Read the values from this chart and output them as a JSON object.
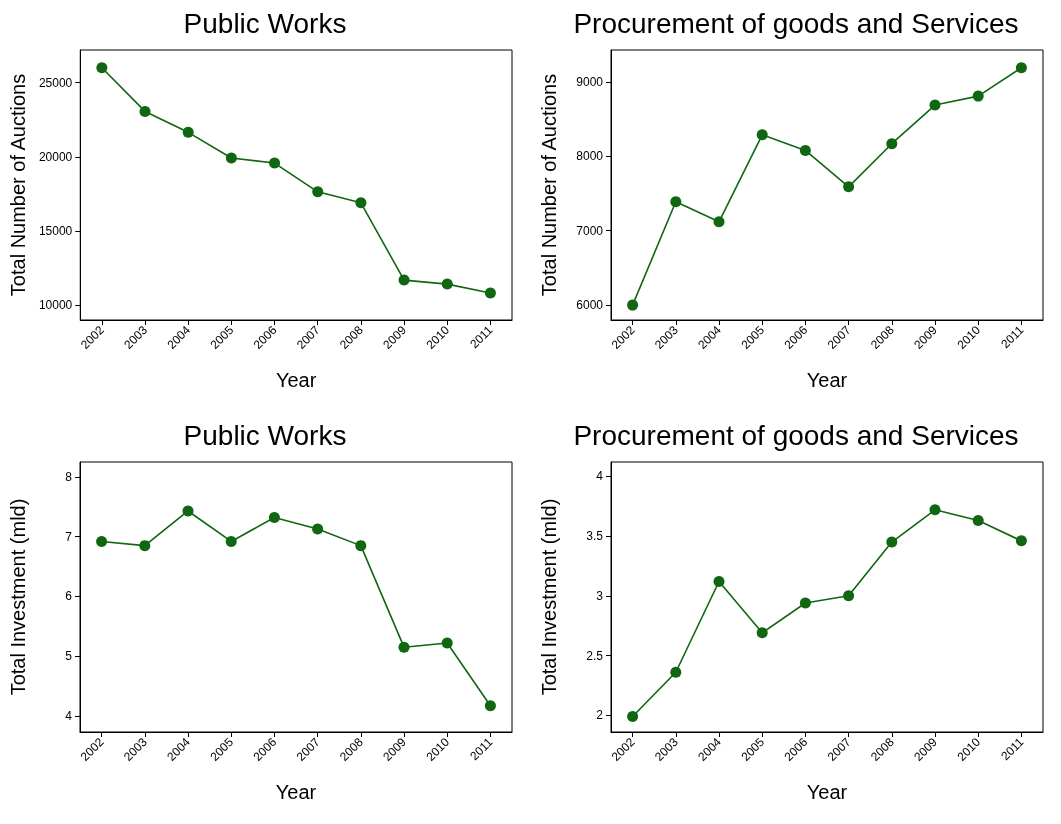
{
  "chart_data": [
    {
      "type": "line",
      "title": "Public Works",
      "xlabel": "Year",
      "ylabel": "Total Number of Auctions",
      "categories": [
        "2002",
        "2003",
        "2004",
        "2005",
        "2006",
        "2007",
        "2008",
        "2009",
        "2010",
        "2011"
      ],
      "series": [
        {
          "color": "#116611",
          "values": [
            26000,
            23060,
            21650,
            19920,
            19580,
            17640,
            16900,
            11690,
            11420,
            10820
          ]
        }
      ],
      "ylim": [
        9000,
        27200
      ],
      "yticks": [
        10000,
        15000,
        20000,
        25000
      ],
      "marker": "circle",
      "grid": false
    },
    {
      "type": "line",
      "title": "Procurement of goods and Services",
      "xlabel": "Year",
      "ylabel": "Total Number of Auctions",
      "categories": [
        "2002",
        "2003",
        "2004",
        "2005",
        "2006",
        "2007",
        "2008",
        "2009",
        "2010",
        "2011"
      ],
      "series": [
        {
          "color": "#116611",
          "values": [
            6000,
            7390,
            7120,
            8290,
            8080,
            7590,
            8170,
            8690,
            8810,
            9190
          ]
        }
      ],
      "ylim": [
        5800,
        9430
      ],
      "yticks": [
        6000,
        7000,
        8000,
        9000
      ],
      "marker": "circle",
      "grid": false
    },
    {
      "type": "line",
      "title": "Public Works",
      "xlabel": "Year",
      "ylabel": "Total Investment (mld)",
      "categories": [
        "2002",
        "2003",
        "2004",
        "2005",
        "2006",
        "2007",
        "2008",
        "2009",
        "2010",
        "2011"
      ],
      "series": [
        {
          "color": "#116611",
          "values": [
            6.92,
            6.85,
            7.43,
            6.92,
            7.32,
            7.13,
            6.85,
            5.15,
            5.22,
            4.17
          ]
        }
      ],
      "ylim": [
        3.73,
        8.25
      ],
      "yticks": [
        4,
        5,
        6,
        7,
        8
      ],
      "marker": "circle",
      "grid": false
    },
    {
      "type": "line",
      "title": "Procurement of goods and Services",
      "xlabel": "Year",
      "ylabel": "Total Investment (mld)",
      "categories": [
        "2002",
        "2003",
        "2004",
        "2005",
        "2006",
        "2007",
        "2008",
        "2009",
        "2010",
        "2011"
      ],
      "series": [
        {
          "color": "#116611",
          "values": [
            1.99,
            2.36,
            3.12,
            2.69,
            2.94,
            3.0,
            3.45,
            3.72,
            3.63,
            3.46
          ]
        }
      ],
      "ylim": [
        1.86,
        4.12
      ],
      "yticks": [
        2,
        2.5,
        3,
        3.5,
        4
      ],
      "marker": "circle",
      "grid": false
    }
  ]
}
